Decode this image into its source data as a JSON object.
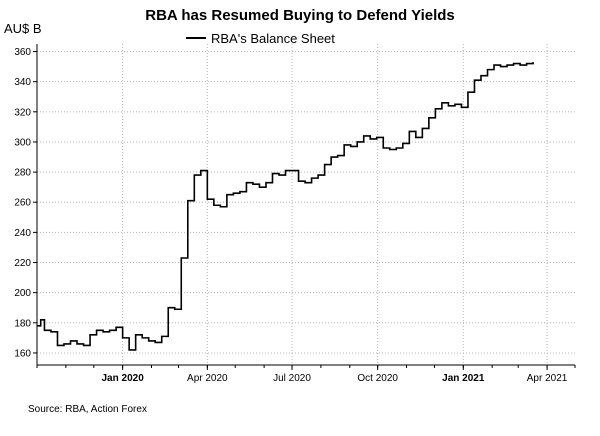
{
  "chart_data": {
    "type": "line",
    "title": "RBA has Resumed Buying to Defend Yields",
    "unit_label": "AU$ B",
    "xlabel": "",
    "ylabel": "",
    "legend": {
      "entries": [
        "RBA's Balance Sheet"
      ],
      "placement": "top-center"
    },
    "grid": true,
    "line_style": "step",
    "xlim": [
      "2019-10-01",
      "2021-05-01"
    ],
    "ylim": [
      152,
      365
    ],
    "y_ticks": [
      160,
      180,
      200,
      220,
      240,
      260,
      280,
      300,
      320,
      340,
      360
    ],
    "x_ticks": [
      {
        "date": "2020-01-01",
        "label": "Jan 2020",
        "bold": true
      },
      {
        "date": "2020-04-01",
        "label": "Apr 2020",
        "bold": false
      },
      {
        "date": "2020-07-01",
        "label": "Jul 2020",
        "bold": false
      },
      {
        "date": "2020-10-01",
        "label": "Oct 2020",
        "bold": false
      },
      {
        "date": "2021-01-01",
        "label": "Jan 2021",
        "bold": true
      },
      {
        "date": "2021-04-01",
        "label": "Apr 2021",
        "bold": false
      }
    ],
    "series": [
      {
        "name": "RBA's Balance Sheet",
        "color": "#000000",
        "x": [
          "2019-10-01",
          "2019-10-05",
          "2019-10-09",
          "2019-10-16",
          "2019-10-23",
          "2019-10-30",
          "2019-11-06",
          "2019-11-13",
          "2019-11-20",
          "2019-11-27",
          "2019-12-04",
          "2019-12-11",
          "2019-12-18",
          "2019-12-25",
          "2020-01-01",
          "2020-01-08",
          "2020-01-15",
          "2020-01-22",
          "2020-01-29",
          "2020-02-05",
          "2020-02-12",
          "2020-02-19",
          "2020-02-26",
          "2020-03-04",
          "2020-03-11",
          "2020-03-18",
          "2020-03-25",
          "2020-04-01",
          "2020-04-08",
          "2020-04-15",
          "2020-04-22",
          "2020-04-29",
          "2020-05-06",
          "2020-05-13",
          "2020-05-20",
          "2020-05-27",
          "2020-06-03",
          "2020-06-10",
          "2020-06-17",
          "2020-06-24",
          "2020-07-01",
          "2020-07-08",
          "2020-07-15",
          "2020-07-22",
          "2020-07-29",
          "2020-08-05",
          "2020-08-12",
          "2020-08-19",
          "2020-08-26",
          "2020-09-02",
          "2020-09-09",
          "2020-09-16",
          "2020-09-23",
          "2020-09-30",
          "2020-10-07",
          "2020-10-14",
          "2020-10-21",
          "2020-10-28",
          "2020-11-04",
          "2020-11-11",
          "2020-11-18",
          "2020-11-25",
          "2020-12-02",
          "2020-12-09",
          "2020-12-16",
          "2020-12-23",
          "2020-12-30",
          "2021-01-06",
          "2021-01-13",
          "2021-01-20",
          "2021-01-27",
          "2021-02-03",
          "2021-02-10",
          "2021-02-17",
          "2021-02-24",
          "2021-03-03",
          "2021-03-10",
          "2021-03-17"
        ],
        "values": [
          178,
          182,
          175,
          174,
          165,
          166,
          168,
          166,
          165,
          172,
          175,
          174,
          175,
          177,
          170,
          162,
          172,
          170,
          168,
          167,
          171,
          190,
          189,
          223,
          261,
          278,
          281,
          262,
          258,
          257,
          265,
          266,
          267,
          273,
          272,
          270,
          273,
          279,
          278,
          281,
          281,
          274,
          273,
          276,
          278,
          285,
          290,
          291,
          298,
          297,
          300,
          304,
          302,
          303,
          296,
          295,
          296,
          299,
          307,
          303,
          309,
          316,
          322,
          326,
          324,
          325,
          323,
          333,
          341,
          344,
          348,
          351,
          350,
          351,
          352,
          351,
          352,
          353
        ]
      }
    ]
  },
  "source_text": "Source: RBA, Action Forex"
}
